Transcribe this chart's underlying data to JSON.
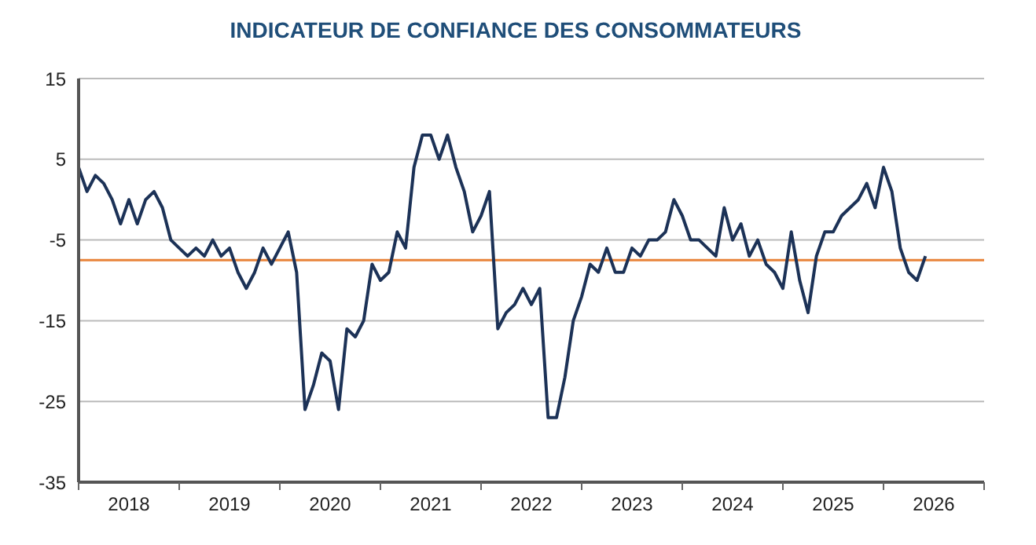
{
  "chart_data": {
    "type": "line",
    "title": "INDICATEUR DE CONFIANCE DES CONSOMMATEURS",
    "x": [
      "2018-01",
      "2018-02",
      "2018-03",
      "2018-04",
      "2018-05",
      "2018-06",
      "2018-07",
      "2018-08",
      "2018-09",
      "2018-10",
      "2018-11",
      "2018-12",
      "2019-01",
      "2019-02",
      "2019-03",
      "2019-04",
      "2019-05",
      "2019-06",
      "2019-07",
      "2019-08",
      "2019-09",
      "2019-10",
      "2019-11",
      "2019-12",
      "2020-01",
      "2020-02",
      "2020-03",
      "2020-04",
      "2020-05",
      "2020-06",
      "2020-07",
      "2020-08",
      "2020-09",
      "2020-10",
      "2020-11",
      "2020-12",
      "2021-01",
      "2021-02",
      "2021-03",
      "2021-04",
      "2021-05",
      "2021-06",
      "2021-07",
      "2021-08",
      "2021-09",
      "2021-10",
      "2021-11",
      "2021-12",
      "2022-01",
      "2022-02",
      "2022-03",
      "2022-04",
      "2022-05",
      "2022-06",
      "2022-07",
      "2022-08",
      "2022-09",
      "2022-10",
      "2022-11",
      "2022-12",
      "2023-01",
      "2023-02",
      "2023-03",
      "2023-04",
      "2023-05",
      "2023-06",
      "2023-07",
      "2023-08",
      "2023-09",
      "2023-10",
      "2023-11",
      "2023-12",
      "2024-01",
      "2024-02",
      "2024-03",
      "2024-04",
      "2024-05",
      "2024-06",
      "2024-07",
      "2024-08",
      "2024-09",
      "2024-10",
      "2024-11",
      "2024-12",
      "2025-01",
      "2025-02",
      "2025-03",
      "2025-04",
      "2025-05",
      "2025-06",
      "2025-07",
      "2025-08",
      "2025-09",
      "2025-10",
      "2025-11",
      "2025-12",
      "2026-01",
      "2026-02",
      "2026-03",
      "2026-04",
      "2026-05",
      "2026-06"
    ],
    "series": [
      {
        "color": "#1c3257",
        "values": [
          4,
          1,
          3,
          2,
          0,
          -3,
          0,
          -3,
          0,
          1,
          -1,
          -5,
          -6,
          -7,
          -6,
          -7,
          -5,
          -7,
          -6,
          -9,
          -11,
          -9,
          -6,
          -8,
          -6,
          -4,
          -9,
          -26,
          -23,
          -19,
          -20,
          -26,
          -16,
          -17,
          -15,
          -8,
          -10,
          -9,
          -4,
          -6,
          4,
          8,
          8,
          5,
          8,
          4,
          1,
          -4,
          -2,
          1,
          -16,
          -14,
          -13,
          -11,
          -13,
          -11,
          -27,
          -27,
          -22,
          -15,
          -12,
          -8,
          -9,
          -6,
          -9,
          -9,
          -6,
          -7,
          -5,
          -5,
          -4,
          0,
          -2,
          -5,
          -5,
          -6,
          -7,
          -1,
          -5,
          -3,
          -7,
          -5,
          -8,
          -9,
          -11,
          -4,
          -10,
          -14,
          -7,
          -4,
          -4,
          -2,
          -1,
          0,
          2,
          -1,
          4,
          1,
          -6,
          -9,
          -10,
          -7
        ]
      }
    ],
    "xlim": [
      "2018-01",
      "2027-01"
    ],
    "xticks": [
      {
        "value": "2018-01",
        "label": null
      },
      {
        "value": "2018-07",
        "label": "2018"
      },
      {
        "value": "2019-01",
        "label": null
      },
      {
        "value": "2019-07",
        "label": "2019"
      },
      {
        "value": "2020-01",
        "label": null
      },
      {
        "value": "2020-07",
        "label": "2020"
      },
      {
        "value": "2021-01",
        "label": null
      },
      {
        "value": "2021-07",
        "label": "2021"
      },
      {
        "value": "2022-01",
        "label": null
      },
      {
        "value": "2022-07",
        "label": "2022"
      },
      {
        "value": "2023-01",
        "label": null
      },
      {
        "value": "2023-07",
        "label": "2023"
      },
      {
        "value": "2024-01",
        "label": null
      },
      {
        "value": "2024-07",
        "label": "2024"
      },
      {
        "value": "2025-01",
        "label": null
      },
      {
        "value": "2025-07",
        "label": "2025"
      },
      {
        "value": "2026-01",
        "label": null
      },
      {
        "value": "2026-07",
        "label": "2026"
      },
      {
        "value": "2027-01",
        "label": null
      }
    ],
    "ylim": [
      -35,
      15
    ],
    "yticks": [
      -35,
      -25,
      -15,
      -5,
      5,
      15
    ],
    "grid": "y",
    "legend": false,
    "marker": "none",
    "line_style": "solid",
    "ref_lines": [
      {
        "axis": "y",
        "value": -7.5,
        "color": "#e8833a"
      }
    ]
  }
}
